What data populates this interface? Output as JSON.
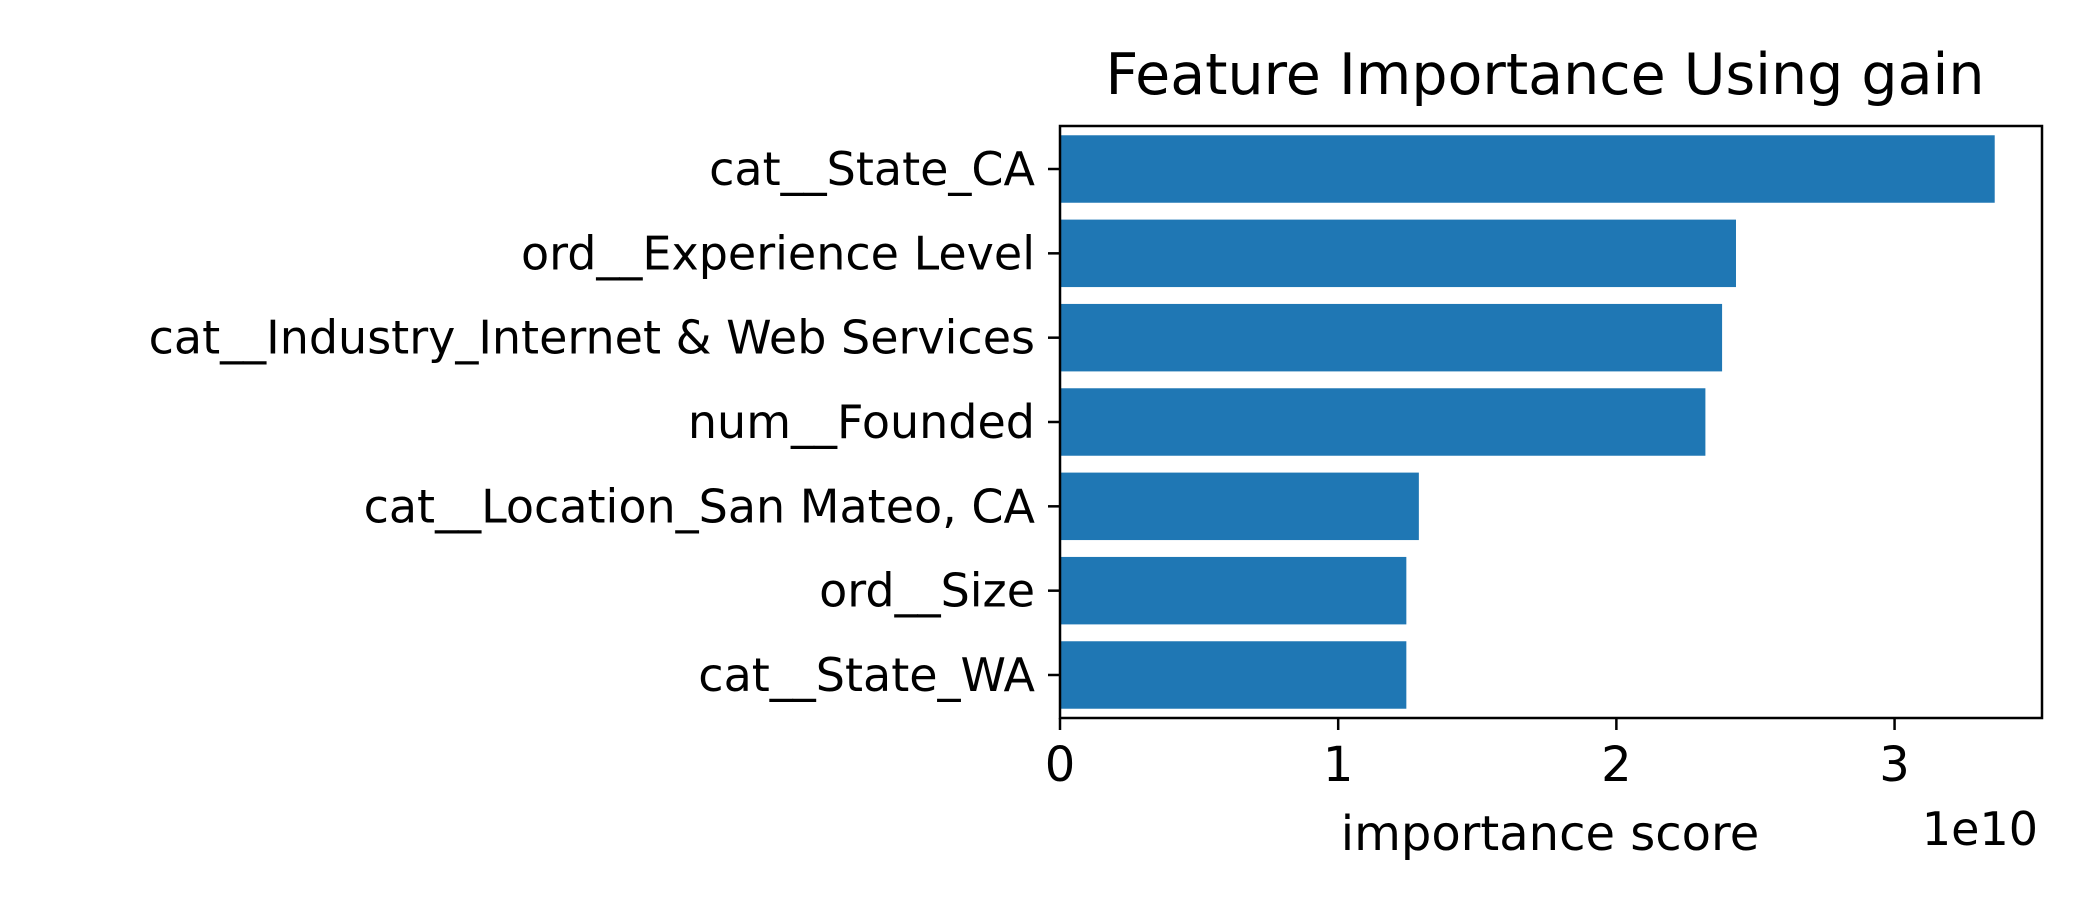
{
  "chart_data": {
    "type": "bar",
    "orientation": "horizontal",
    "title": "Feature Importance Using gain",
    "xlabel": "importance score",
    "ylabel": "",
    "x_offset_text": "1e10",
    "categories": [
      "cat__State_CA",
      "ord__Experience Level",
      "cat__Industry_Internet & Web Services",
      "num__Founded",
      "cat__Location_San Mateo, CA",
      "ord__Size",
      "cat__State_WA"
    ],
    "values": [
      33600000000,
      24300000000,
      23800000000,
      23200000000,
      12900000000,
      12450000000,
      12450000000
    ],
    "xlim": [
      0,
      35300000000
    ],
    "xticks": [
      0,
      10000000000,
      20000000000,
      30000000000
    ],
    "xtick_labels": [
      "0",
      "1",
      "2",
      "3"
    ],
    "grid": false,
    "bar_color": "#1f77b4"
  }
}
